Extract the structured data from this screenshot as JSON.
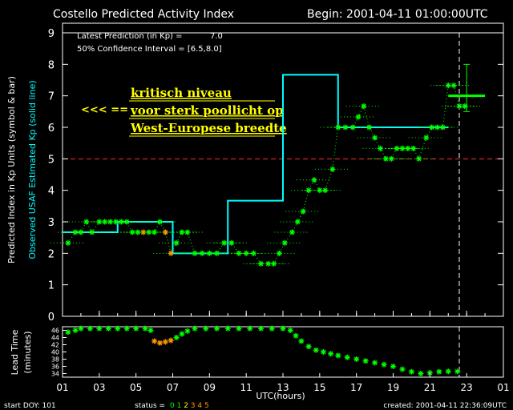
{
  "header": {
    "title": "Costello Predicted Activity Index",
    "begin": "Begin: 2001-04-11 01:00:00UTC"
  },
  "info": {
    "latest_prediction": "Latest Prediction (in Kp) =",
    "latest_value": "7.0",
    "confidence": "50% Confidence Interval  = [6.5,8.0]"
  },
  "annotation": {
    "arrow": "<<< ==",
    "line1": "kritisch niveau",
    "line2": "voor sterk poollicht op",
    "line3": "West-Europese breedte"
  },
  "labels": {
    "y_main_1": "Predicted Index in Kp Units (symbol & bar)",
    "y_main_2": "Observed USAF Estimated Kp (solid line)",
    "y_lead_1": "Lead Time",
    "y_lead_2": "(minutes)",
    "xlabel": "UTC(hours)",
    "start_doy": "start DOY:   101",
    "status_label": "status =",
    "created": "created: 2001-04-11 22:36:09UTC"
  },
  "status_codes": [
    {
      "text": "0",
      "color": "#00ff00"
    },
    {
      "text": "1",
      "color": "#00ff00"
    },
    {
      "text": "2",
      "color": "#ffff00"
    },
    {
      "text": "3",
      "color": "#ff9900"
    },
    {
      "text": "4",
      "color": "#ff9900"
    },
    {
      "text": "5",
      "color": "#ff9900"
    }
  ],
  "colors": {
    "observed": "#00ffff",
    "predicted": "#00ff00",
    "warm": "#ff9900",
    "threshold": "#ff3333",
    "now_marker": "#ffffff"
  },
  "chart_data": [
    {
      "type": "line",
      "ylabel": "Predicted Index in Kp Units (symbol & bar) / Observed USAF Estimated Kp (solid line)",
      "xlim": [
        1,
        25
      ],
      "ylim": [
        0,
        9
      ],
      "x_ticks": [
        "01",
        "03",
        "05",
        "07",
        "09",
        "11",
        "13",
        "15",
        "17",
        "19",
        "21",
        "23",
        "01"
      ],
      "y_ticks": [
        "0",
        "1",
        "2",
        "3",
        "4",
        "5",
        "6",
        "7",
        "8",
        "9"
      ],
      "threshold": 5,
      "now_x": 22.6,
      "observed_kp": [
        {
          "x0": 1,
          "x1": 4,
          "y": 2.67
        },
        {
          "x0": 4,
          "x1": 7,
          "y": 3.0
        },
        {
          "x0": 7,
          "x1": 10,
          "y": 2.0
        },
        {
          "x0": 10,
          "x1": 13,
          "y": 3.67
        },
        {
          "x0": 13,
          "x1": 16,
          "y": 7.67
        },
        {
          "x0": 16,
          "x1": 19,
          "y": 6.0
        },
        {
          "x0": 19,
          "x1": 22,
          "y": 6.0
        }
      ],
      "predicted_kp": [
        [
          1.3,
          2.33
        ],
        [
          1.7,
          2.67
        ],
        [
          2.0,
          2.67
        ],
        [
          2.3,
          3.0
        ],
        [
          2.6,
          2.67
        ],
        [
          3.0,
          3.0
        ],
        [
          3.3,
          3.0
        ],
        [
          3.6,
          3.0
        ],
        [
          3.9,
          3.0
        ],
        [
          4.2,
          3.0
        ],
        [
          4.5,
          3.0
        ],
        [
          4.8,
          2.67
        ],
        [
          5.1,
          2.67
        ],
        [
          5.4,
          2.67
        ],
        [
          5.7,
          2.67
        ],
        [
          6.0,
          2.67
        ],
        [
          6.3,
          3.0
        ],
        [
          6.6,
          2.67
        ],
        [
          6.9,
          2.0
        ],
        [
          7.2,
          2.33
        ],
        [
          7.5,
          2.67
        ],
        [
          7.8,
          2.67
        ],
        [
          8.2,
          2.0
        ],
        [
          8.6,
          2.0
        ],
        [
          9.0,
          2.0
        ],
        [
          9.4,
          2.0
        ],
        [
          9.8,
          2.33
        ],
        [
          10.2,
          2.33
        ],
        [
          10.6,
          2.0
        ],
        [
          11.0,
          2.0
        ],
        [
          11.4,
          2.0
        ],
        [
          11.8,
          1.67
        ],
        [
          12.2,
          1.67
        ],
        [
          12.5,
          1.67
        ],
        [
          12.8,
          2.0
        ],
        [
          13.1,
          2.33
        ],
        [
          13.5,
          2.67
        ],
        [
          13.8,
          3.0
        ],
        [
          14.1,
          3.33
        ],
        [
          14.4,
          4.0
        ],
        [
          14.7,
          4.33
        ],
        [
          15.0,
          4.0
        ],
        [
          15.3,
          4.0
        ],
        [
          15.7,
          4.67
        ],
        [
          16.0,
          6.0
        ],
        [
          16.4,
          6.0
        ],
        [
          16.8,
          6.0
        ],
        [
          17.1,
          6.33
        ],
        [
          17.4,
          6.67
        ],
        [
          17.7,
          6.0
        ],
        [
          18.0,
          5.67
        ],
        [
          18.3,
          5.33
        ],
        [
          18.6,
          5.0
        ],
        [
          18.9,
          5.0
        ],
        [
          19.2,
          5.33
        ],
        [
          19.5,
          5.33
        ],
        [
          19.8,
          5.33
        ],
        [
          20.1,
          5.33
        ],
        [
          20.4,
          5.0
        ],
        [
          20.8,
          5.67
        ],
        [
          21.1,
          6.0
        ],
        [
          21.4,
          6.0
        ],
        [
          21.7,
          6.0
        ],
        [
          22.0,
          7.33
        ],
        [
          22.3,
          7.33
        ],
        [
          22.6,
          6.67
        ],
        [
          22.9,
          6.67
        ]
      ],
      "warm_points": [
        [
          6.6,
          2.67
        ],
        [
          6.9,
          2.0
        ],
        [
          5.4,
          2.67
        ]
      ],
      "latest_prediction": {
        "x": 23.0,
        "y": 7.0,
        "low": 6.5,
        "high": 8.0,
        "x0": 22.0,
        "x1": 24.0
      }
    },
    {
      "type": "scatter",
      "ylabel": "Lead Time (minutes)",
      "ylim": [
        33,
        47
      ],
      "y_ticks": [
        "34",
        "36",
        "38",
        "40",
        "42",
        "44",
        "46"
      ],
      "lead_time": [
        [
          1.3,
          45.5
        ],
        [
          1.7,
          46.0
        ],
        [
          2.0,
          46.5
        ],
        [
          2.5,
          46.5
        ],
        [
          3.0,
          46.5
        ],
        [
          3.5,
          46.5
        ],
        [
          4.0,
          46.5
        ],
        [
          4.5,
          46.5
        ],
        [
          5.0,
          46.5
        ],
        [
          5.5,
          46.5
        ],
        [
          5.8,
          46.0
        ],
        [
          6.0,
          43.0
        ],
        [
          6.3,
          42.5
        ],
        [
          6.6,
          42.8
        ],
        [
          6.9,
          43.2
        ],
        [
          7.2,
          44.0
        ],
        [
          7.5,
          45.0
        ],
        [
          7.8,
          45.8
        ],
        [
          8.2,
          46.5
        ],
        [
          8.8,
          46.5
        ],
        [
          9.4,
          46.5
        ],
        [
          10.0,
          46.5
        ],
        [
          10.6,
          46.5
        ],
        [
          11.2,
          46.5
        ],
        [
          11.8,
          46.5
        ],
        [
          12.4,
          46.5
        ],
        [
          13.0,
          46.5
        ],
        [
          13.4,
          46.0
        ],
        [
          13.7,
          44.5
        ],
        [
          14.0,
          43.0
        ],
        [
          14.4,
          41.5
        ],
        [
          14.8,
          40.5
        ],
        [
          15.2,
          40.0
        ],
        [
          15.6,
          39.5
        ],
        [
          16.0,
          39.0
        ],
        [
          16.5,
          38.5
        ],
        [
          17.0,
          38.0
        ],
        [
          17.5,
          37.5
        ],
        [
          18.0,
          37.0
        ],
        [
          18.5,
          36.5
        ],
        [
          19.0,
          36.0
        ],
        [
          19.5,
          35.2
        ],
        [
          20.0,
          34.5
        ],
        [
          20.5,
          34.0
        ],
        [
          21.0,
          34.2
        ],
        [
          21.5,
          34.5
        ],
        [
          22.0,
          34.6
        ],
        [
          22.5,
          34.6
        ]
      ],
      "warm_points": [
        [
          6.0,
          43.0
        ],
        [
          6.3,
          42.5
        ],
        [
          6.6,
          42.8
        ],
        [
          6.9,
          43.2
        ]
      ]
    }
  ]
}
